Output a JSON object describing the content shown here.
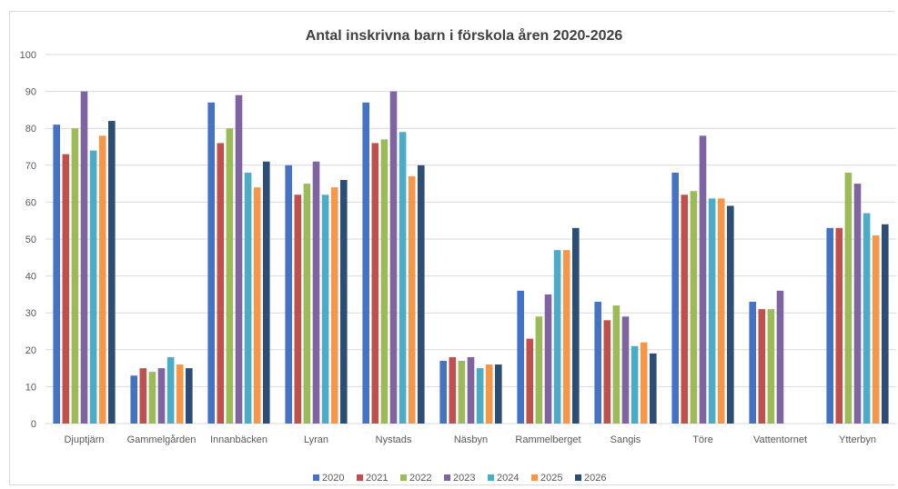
{
  "chart_data": {
    "type": "bar",
    "title": "Antal inskrivna barn i förskola åren 2020-2026",
    "xlabel": "",
    "ylabel": "",
    "ylim": [
      0,
      100
    ],
    "yticks": [
      0,
      10,
      20,
      30,
      40,
      50,
      60,
      70,
      80,
      90,
      100
    ],
    "grid": true,
    "legend": "bottom",
    "categories": [
      "Djuptjärn",
      "Gammelgården",
      "Innanbäcken",
      "Lyran",
      "Nystads",
      "Näsbyn",
      "Rammelberget",
      "Sangis",
      "Töre",
      "Vattentornet",
      "Ytterbyn"
    ],
    "series": [
      {
        "name": "2020",
        "color": "#4472c4",
        "values": [
          81,
          13,
          87,
          70,
          87,
          17,
          36,
          33,
          68,
          33,
          53
        ]
      },
      {
        "name": "2021",
        "color": "#c0504d",
        "values": [
          73,
          15,
          76,
          62,
          76,
          18,
          23,
          28,
          62,
          31,
          53
        ]
      },
      {
        "name": "2022",
        "color": "#9bbb59",
        "values": [
          80,
          14,
          80,
          65,
          77,
          17,
          29,
          32,
          63,
          31,
          68
        ]
      },
      {
        "name": "2023",
        "color": "#8064a2",
        "values": [
          90,
          15,
          89,
          71,
          90,
          18,
          35,
          29,
          78,
          36,
          65
        ]
      },
      {
        "name": "2024",
        "color": "#4bacc6",
        "values": [
          74,
          18,
          68,
          62,
          79,
          15,
          47,
          21,
          61,
          null,
          57
        ]
      },
      {
        "name": "2025",
        "color": "#f79646",
        "values": [
          78,
          16,
          64,
          64,
          67,
          16,
          47,
          22,
          61,
          null,
          51
        ]
      },
      {
        "name": "2026",
        "color": "#2c4d75",
        "values": [
          82,
          15,
          71,
          66,
          70,
          16,
          53,
          19,
          59,
          null,
          54
        ]
      }
    ]
  }
}
